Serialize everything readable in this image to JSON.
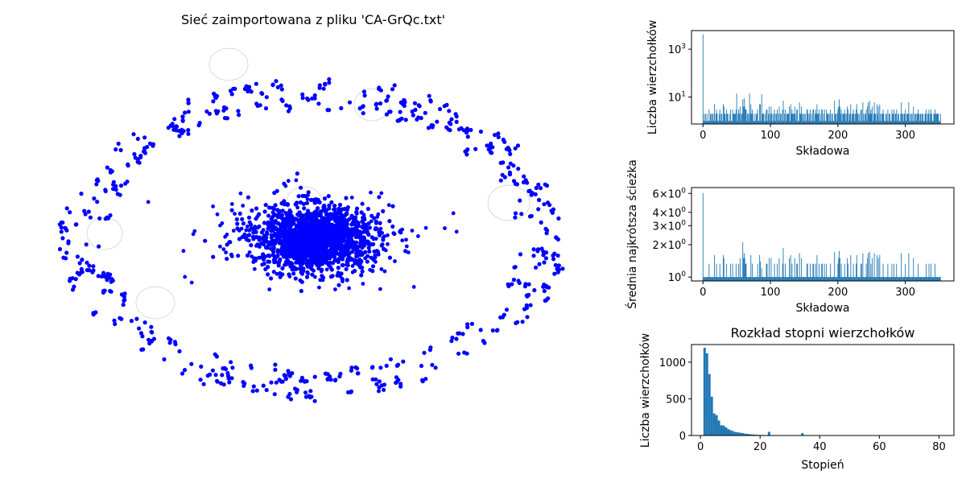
{
  "network": {
    "title": "Sieć zaimportowana z pliku 'CA-GrQc.txt'",
    "node_color": "#0000ff",
    "edge_color": "#cccccc"
  },
  "chart_data": [
    {
      "type": "bar",
      "xlabel": "Składowa",
      "ylabel": "Liczba wierzchołków",
      "yscale": "log",
      "xlim": [
        -17,
        372
      ],
      "ylim": [
        0.75,
        6000
      ],
      "xticks": [
        0,
        100,
        200,
        300
      ],
      "yticks": [
        {
          "value": 10,
          "base": "10",
          "exp": "1"
        },
        {
          "value": 1000,
          "base": "10",
          "exp": "3"
        }
      ],
      "color": "#1f77b4",
      "n_components": 355,
      "values": [
        4158,
        1,
        2,
        1,
        2,
        1,
        2,
        1,
        1,
        3,
        1,
        2,
        2,
        1,
        2,
        2,
        1,
        5,
        1,
        2,
        3,
        2,
        1,
        1,
        2,
        3,
        1,
        2,
        2,
        1,
        5,
        4,
        2,
        2,
        1,
        3,
        2,
        2,
        1,
        1,
        2,
        3,
        1,
        1,
        3,
        2,
        2,
        2,
        2,
        3,
        14,
        1,
        2,
        3,
        2,
        4,
        1,
        2,
        2,
        8,
        4,
        9,
        4,
        3,
        3,
        1,
        2,
        2,
        1,
        14,
        2,
        5,
        2,
        3,
        2,
        1,
        1,
        2,
        1,
        2,
        2,
        3,
        1,
        1,
        5,
        5,
        1,
        13,
        2,
        2,
        2,
        1,
        2,
        1,
        3,
        3,
        1,
        2,
        4,
        1,
        2,
        4,
        2,
        1,
        2,
        1,
        3,
        2,
        1,
        2,
        3,
        1,
        2,
        4,
        1,
        2,
        2,
        1,
        3,
        7,
        1,
        2,
        3,
        1,
        2,
        2,
        2,
        2,
        4,
        1,
        5,
        2,
        3,
        2,
        2,
        2,
        4,
        2,
        1,
        3,
        3,
        1,
        1,
        6,
        2,
        2,
        4,
        2,
        1,
        2,
        2,
        1,
        2,
        1,
        3,
        3,
        2,
        1,
        2,
        3,
        1,
        2,
        1,
        3,
        3,
        1,
        2,
        3,
        2,
        5,
        2,
        2,
        3,
        1,
        2,
        1,
        3,
        3,
        1,
        2,
        3,
        1,
        1,
        3,
        2,
        2,
        2,
        1,
        2,
        3,
        1,
        2,
        2,
        1,
        1,
        7,
        2,
        2,
        1,
        2,
        3,
        4,
        8,
        4,
        2,
        3,
        1,
        2,
        2,
        2,
        3,
        2,
        1,
        2,
        4,
        3,
        1,
        2,
        2,
        5,
        1,
        2,
        2,
        3,
        2,
        1,
        2,
        3,
        5,
        2,
        2,
        1,
        2,
        1,
        3,
        3,
        1,
        6,
        2,
        1,
        2,
        2,
        3,
        1,
        4,
        6,
        2,
        7,
        2,
        3,
        2,
        4,
        1,
        2,
        6,
        2,
        2,
        1,
        5,
        2,
        4,
        1,
        5,
        2,
        1,
        2,
        2,
        3,
        2,
        1,
        1,
        2,
        2,
        1,
        3,
        1,
        2,
        2,
        1,
        1,
        3,
        2,
        2,
        3,
        1,
        2,
        2,
        3,
        1,
        2,
        2,
        1,
        1,
        2,
        6,
        2,
        2,
        1,
        2,
        2,
        3,
        1,
        2,
        2,
        2,
        6,
        1,
        2,
        1,
        2,
        2,
        1,
        4,
        1,
        2,
        2,
        1,
        2,
        2,
        3,
        2,
        1,
        2,
        2,
        1,
        2,
        2,
        1,
        1,
        2,
        2,
        3,
        1,
        2,
        2,
        3,
        1,
        2,
        3,
        2,
        1,
        1,
        2,
        2,
        3,
        2,
        2,
        2,
        2,
        2,
        1,
        1,
        2
      ]
    },
    {
      "type": "bar",
      "xlabel": "Składowa",
      "ylabel": "Średnia najkrótsza ścieżka",
      "yscale": "log",
      "xlim": [
        -17,
        372
      ],
      "ylim": [
        0.92,
        6.8
      ],
      "xticks": [
        0,
        100,
        200,
        300
      ],
      "yticks": [
        {
          "value": 1,
          "base": "10",
          "exp": "0"
        },
        {
          "value": 2,
          "base": "2×10",
          "exp": "0"
        },
        {
          "value": 3,
          "base": "3×10",
          "exp": "0"
        },
        {
          "value": 4,
          "base": "4×10",
          "exp": "0"
        },
        {
          "value": 6,
          "base": "6×10",
          "exp": "0"
        }
      ],
      "color": "#1f77b4",
      "n_components": 355,
      "values": [
        6.05,
        1,
        1,
        1,
        1,
        1,
        1,
        1,
        1,
        1.33,
        1,
        1,
        1,
        1,
        1,
        1,
        1,
        1.6,
        1,
        1,
        1.33,
        1,
        1,
        1,
        1,
        1.33,
        1,
        1,
        1,
        1,
        1.6,
        1.5,
        1,
        1,
        1,
        1.33,
        1,
        1,
        1,
        1,
        1,
        1.33,
        1,
        1,
        1.33,
        1,
        1,
        1,
        1,
        1.33,
        1,
        1,
        1,
        1.33,
        1,
        1.5,
        1,
        1,
        1,
        2.11,
        1.5,
        1.67,
        1.5,
        1.33,
        1.33,
        1,
        1,
        1,
        1,
        1,
        1,
        1.6,
        1,
        1.33,
        1,
        1,
        1,
        1,
        1,
        1,
        1,
        1.33,
        1,
        1,
        1.6,
        1.4,
        1,
        1.21,
        1,
        1,
        1,
        1,
        1,
        1,
        1.33,
        1.33,
        1,
        1,
        1.5,
        1,
        1,
        1.5,
        1,
        1,
        1,
        1,
        1.33,
        1,
        1,
        1,
        1.33,
        1,
        1,
        1.5,
        1,
        1,
        1,
        1,
        1.33,
        1.86,
        1,
        1,
        1.33,
        1,
        1,
        1,
        1,
        1,
        1.5,
        1,
        1.6,
        1,
        1.33,
        1,
        1,
        1,
        1.5,
        1,
        1,
        1.33,
        1.33,
        1,
        1,
        1.67,
        1,
        1,
        1.5,
        1,
        1,
        1,
        1,
        1,
        1,
        1,
        1.33,
        1.33,
        1,
        1,
        1,
        1.33,
        1,
        1,
        1,
        1.33,
        1.33,
        1,
        1,
        1.33,
        1,
        1.6,
        1,
        1,
        1.33,
        1,
        1,
        1,
        1.33,
        1.33,
        1,
        1,
        1.33,
        1,
        1,
        1.33,
        1,
        1,
        1,
        1,
        1,
        1.33,
        1,
        1,
        1,
        1,
        1,
        1.71,
        1,
        1,
        1,
        1,
        1.33,
        1.5,
        1.75,
        1.5,
        1,
        1.33,
        1,
        1,
        1,
        1,
        1.33,
        1,
        1,
        1,
        1.5,
        1.33,
        1,
        1,
        1,
        1.6,
        1,
        1,
        1,
        1.33,
        1,
        1,
        1,
        1.33,
        1.6,
        1,
        1,
        1,
        1,
        1,
        1.33,
        1.33,
        1,
        1.67,
        1,
        1,
        1,
        1,
        1.33,
        1,
        1.5,
        1.67,
        1,
        1.71,
        1,
        1.33,
        1,
        1.5,
        1,
        1,
        1.67,
        1,
        1,
        1,
        1.6,
        1,
        1.5,
        1,
        1.6,
        1,
        1,
        1,
        1,
        1.33,
        1,
        1,
        1,
        1,
        1,
        1,
        1.33,
        1,
        1,
        1,
        1,
        1,
        1.33,
        1,
        1,
        1.33,
        1,
        1,
        1,
        1.33,
        1,
        1,
        1,
        1,
        1,
        1,
        1.67,
        1,
        1,
        1,
        1,
        1,
        1.33,
        1,
        1,
        1,
        1,
        1.67,
        1,
        1,
        1,
        1,
        1,
        1,
        1.5,
        1,
        1,
        1,
        1,
        1,
        1,
        1.33,
        1,
        1,
        1,
        1,
        1,
        1,
        1,
        1,
        1,
        1,
        1,
        1.33,
        1,
        1,
        1,
        1.33,
        1,
        1,
        1.33,
        1,
        1,
        1,
        1,
        1,
        1.33,
        1,
        1,
        1,
        1,
        1,
        1,
        1,
        1
      ]
    },
    {
      "type": "histogram",
      "title": "Rozkład stopni wierzchołków",
      "xlabel": "Stopień",
      "ylabel": "Liczba wierzchołków",
      "xlim": [
        -3,
        85
      ],
      "ylim": [
        0,
        1240
      ],
      "xticks": [
        0,
        20,
        40,
        60,
        80
      ],
      "yticks": [
        0,
        500,
        1000
      ],
      "color": "#1f77b4",
      "bins": [
        {
          "x0": 1,
          "x1": 1.8,
          "count": 1196
        },
        {
          "x0": 1.8,
          "x1": 2.6,
          "count": 1120
        },
        {
          "x0": 2.6,
          "x1": 3.4,
          "count": 838
        },
        {
          "x0": 3.4,
          "x1": 4.2,
          "count": 530
        },
        {
          "x0": 4.2,
          "x1": 5.0,
          "count": 301
        },
        {
          "x0": 5.0,
          "x1": 5.8,
          "count": 278
        },
        {
          "x0": 5.8,
          "x1": 6.6,
          "count": 203
        },
        {
          "x0": 6.6,
          "x1": 7.4,
          "count": 139
        },
        {
          "x0": 7.4,
          "x1": 8.2,
          "count": 135
        },
        {
          "x0": 8.2,
          "x1": 9.0,
          "count": 110
        },
        {
          "x0": 9.0,
          "x1": 9.8,
          "count": 85
        },
        {
          "x0": 9.8,
          "x1": 10.6,
          "count": 72
        },
        {
          "x0": 10.6,
          "x1": 11.4,
          "count": 59
        },
        {
          "x0": 11.4,
          "x1": 12.2,
          "count": 48
        },
        {
          "x0": 12.2,
          "x1": 13.0,
          "count": 42
        },
        {
          "x0": 13.0,
          "x1": 13.8,
          "count": 38
        },
        {
          "x0": 13.8,
          "x1": 14.6,
          "count": 33
        },
        {
          "x0": 14.6,
          "x1": 15.4,
          "count": 25
        },
        {
          "x0": 15.4,
          "x1": 16.2,
          "count": 22
        },
        {
          "x0": 16.2,
          "x1": 17.0,
          "count": 18
        },
        {
          "x0": 17.0,
          "x1": 17.8,
          "count": 15
        },
        {
          "x0": 17.8,
          "x1": 18.6,
          "count": 12
        },
        {
          "x0": 18.6,
          "x1": 19.4,
          "count": 10
        },
        {
          "x0": 19.4,
          "x1": 20.2,
          "count": 8
        },
        {
          "x0": 20.2,
          "x1": 21.0,
          "count": 7
        },
        {
          "x0": 21.0,
          "x1": 21.8,
          "count": 6
        },
        {
          "x0": 22.6,
          "x1": 23.4,
          "count": 50
        },
        {
          "x0": 23.4,
          "x1": 24.2,
          "count": 5
        },
        {
          "x0": 25.0,
          "x1": 25.8,
          "count": 4
        },
        {
          "x0": 26.6,
          "x1": 27.4,
          "count": 3
        },
        {
          "x0": 29.0,
          "x1": 29.8,
          "count": 5
        },
        {
          "x0": 31.4,
          "x1": 32.2,
          "count": 3
        },
        {
          "x0": 33.8,
          "x1": 34.6,
          "count": 34
        },
        {
          "x0": 40.2,
          "x1": 41.0,
          "count": 4
        },
        {
          "x0": 44.2,
          "x1": 45.0,
          "count": 4
        },
        {
          "x0": 55.4,
          "x1": 56.2,
          "count": 2
        },
        {
          "x0": 65.0,
          "x1": 65.8,
          "count": 1
        },
        {
          "x0": 80.2,
          "x1": 81.0,
          "count": 1
        }
      ]
    }
  ]
}
